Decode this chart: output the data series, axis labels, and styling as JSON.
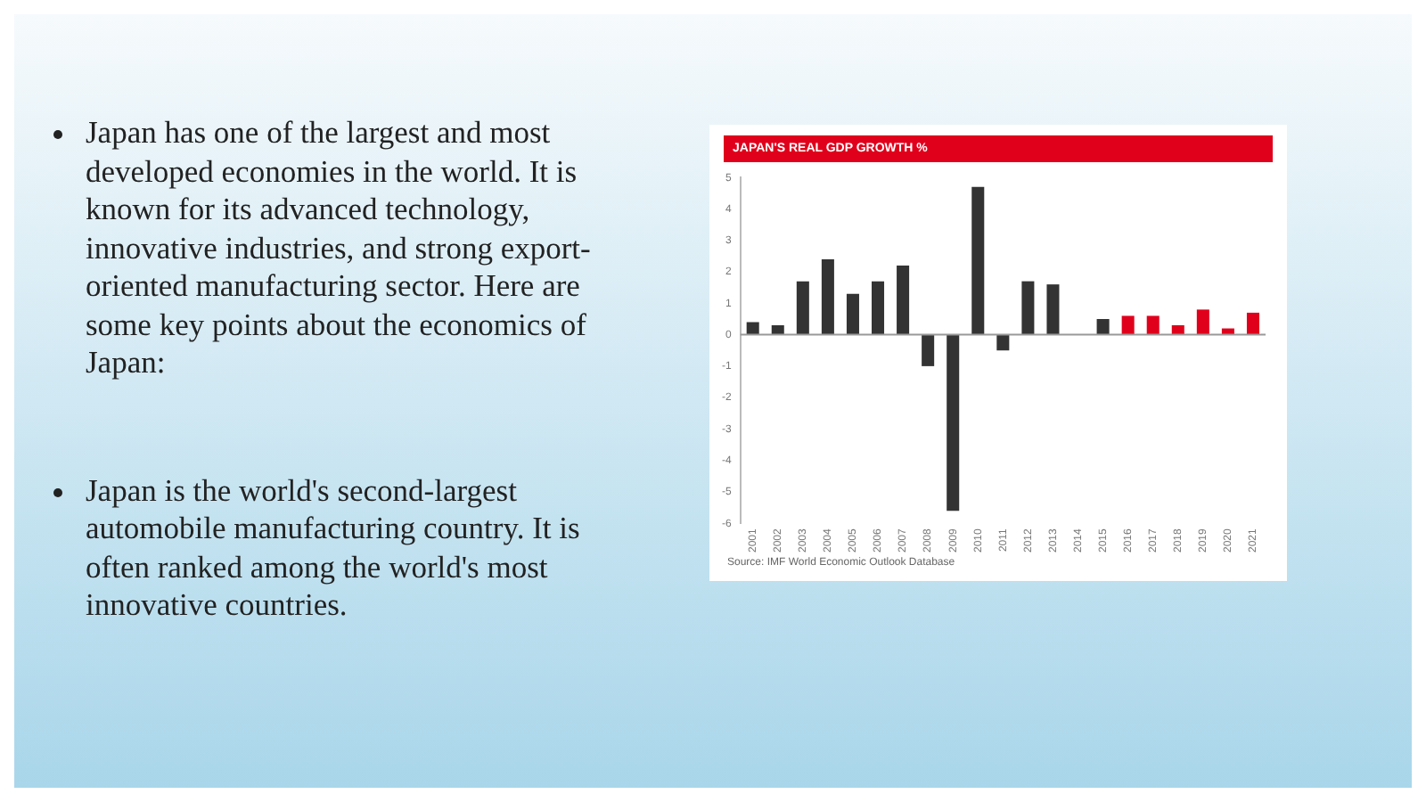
{
  "chart_data": {
    "type": "bar",
    "title": "JAPAN'S REAL GDP GROWTH %",
    "categories": [
      "2001",
      "2002",
      "2003",
      "2004",
      "2005",
      "2006",
      "2007",
      "2008",
      "2009",
      "2010",
      "2011",
      "2012",
      "2013",
      "2014",
      "2015",
      "2016",
      "2017",
      "2018",
      "2019",
      "2020",
      "2021"
    ],
    "values": [
      0.4,
      0.3,
      1.7,
      2.4,
      1.3,
      1.7,
      2.2,
      -1.0,
      -5.6,
      4.7,
      -0.5,
      1.7,
      1.6,
      0.0,
      0.5,
      0.6,
      0.6,
      0.3,
      0.8,
      0.2,
      0.7
    ],
    "colors": [
      "#333333",
      "#333333",
      "#333333",
      "#333333",
      "#333333",
      "#333333",
      "#333333",
      "#333333",
      "#333333",
      "#333333",
      "#333333",
      "#333333",
      "#333333",
      "#333333",
      "#333333",
      "#e0001b",
      "#e0001b",
      "#e0001b",
      "#e0001b",
      "#e0001b",
      "#e0001b"
    ],
    "ylim": [
      -6,
      5
    ],
    "yticks": [
      5,
      4,
      3,
      2,
      1,
      0,
      -1,
      -2,
      -3,
      -4,
      -5,
      -6
    ],
    "grid": false,
    "legend": false,
    "ref_lines": [
      {
        "axis": "y",
        "value": 0,
        "color": "#999999"
      }
    ],
    "annotations": [
      "Japan has one of the largest and most developed economies in the world. It is known for its advanced technology, innovative industries, and strong export-oriented manufacturing sector. Here are some key points about the economics of Japan:",
      "Japan is the world's second-largest automobile manufacturing country. It is often ranked among the world's most innovative countries.",
      "Source: IMF World Economic Outlook Database"
    ]
  }
}
